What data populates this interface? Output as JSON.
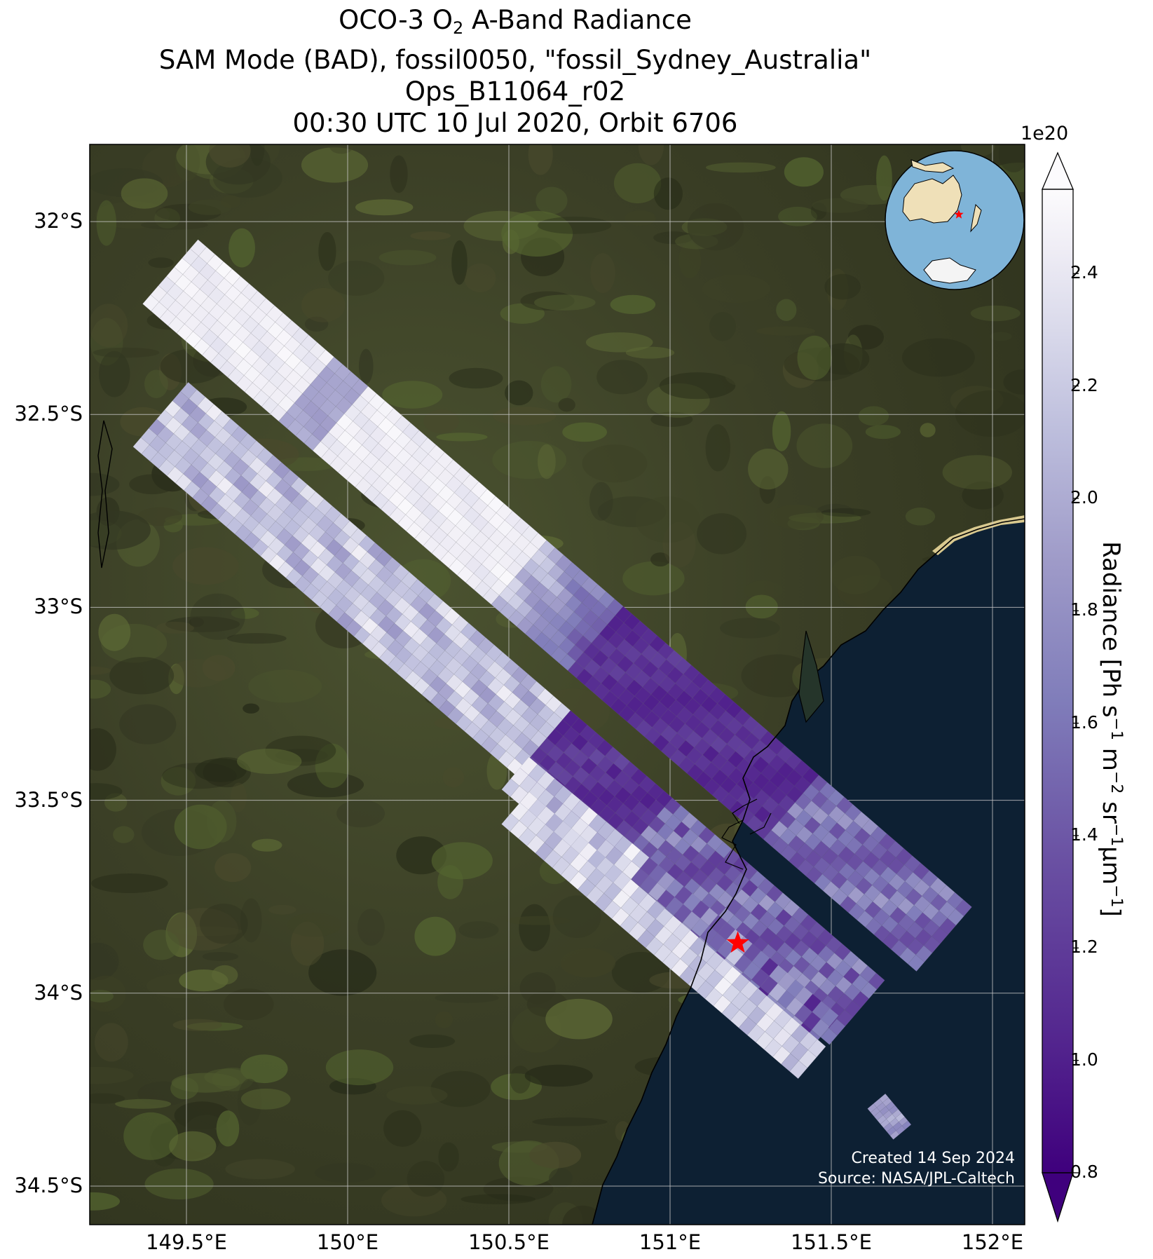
{
  "title": {
    "line1_pre": "OCO-3 O",
    "line1_sub": "2",
    "line1_post": " A-Band Radiance",
    "line2": "SAM Mode (BAD), fossil0050, \"fossil_Sydney_Australia\"",
    "line3": "Ops_B11064_r02",
    "line4": "00:30 UTC 10 Jul 2020, Orbit 6706"
  },
  "map": {
    "extent": {
      "lon_min": 149.2,
      "lon_max": 152.1,
      "lat_min": -34.6,
      "lat_max": -31.8
    },
    "lat_ticks": [
      {
        "value": -32.0,
        "label": "32°S"
      },
      {
        "value": -32.5,
        "label": "32.5°S"
      },
      {
        "value": -33.0,
        "label": "33°S"
      },
      {
        "value": -33.5,
        "label": "33.5°S"
      },
      {
        "value": -34.0,
        "label": "34°S"
      },
      {
        "value": -34.5,
        "label": "34.5°S"
      }
    ],
    "lon_ticks": [
      {
        "value": 149.5,
        "label": "149.5°E"
      },
      {
        "value": 150.0,
        "label": "150°E"
      },
      {
        "value": 150.5,
        "label": "150.5°E"
      },
      {
        "value": 151.0,
        "label": "151°E"
      },
      {
        "value": 151.5,
        "label": "151.5°E"
      },
      {
        "value": 152.0,
        "label": "152°E"
      }
    ],
    "target": {
      "name": "fossil_Sydney_Australia",
      "lon": 151.21,
      "lat": -33.87,
      "color": "#ff0000"
    },
    "colors": {
      "land": "#3a3d24",
      "ocean": "#0c1f31",
      "grid": "#c8c8c8",
      "sand": "#d8c890"
    },
    "swaths": [
      {
        "lon": 149.45,
        "lat": -32.13,
        "lon2": 151.85,
        "lat2": -33.86,
        "width": 0.11,
        "profile": "upper"
      },
      {
        "lon": 149.42,
        "lat": -32.5,
        "lon2": 151.58,
        "lat2": -34.05,
        "width": 0.11,
        "profile": "lower"
      },
      {
        "lon": 150.52,
        "lat": -33.43,
        "lon2": 151.48,
        "lat2": -34.1,
        "width": 0.055,
        "profile": "south_a"
      },
      {
        "lon": 150.52,
        "lat": -33.52,
        "lon2": 151.44,
        "lat2": -34.18,
        "width": 0.055,
        "profile": "south_b"
      },
      {
        "lon": 151.64,
        "lat": -34.28,
        "lon2": 151.72,
        "lat2": -34.36,
        "width": 0.03,
        "profile": "fragment"
      }
    ]
  },
  "inset": {
    "name": "orthographic-globe",
    "colors": {
      "ocean": "#7fb4d8",
      "land": "#efe0b8",
      "ice": "#f4f4f4"
    }
  },
  "colorbar": {
    "label_pre": "Radiance [Ph s",
    "label_exp1": "−1",
    "label_mid1": " m",
    "label_exp2": "−2",
    "label_mid2": " sr",
    "label_exp3": "−1",
    "label_mid3": "μm",
    "label_exp4": "−1",
    "label_post": "]",
    "exponent": "1e20",
    "vmin": 0.8,
    "vmax": 2.55,
    "extend": "both",
    "colormap": "Purples_r",
    "ticks": [
      {
        "value": 0.8,
        "label": "0.8"
      },
      {
        "value": 1.0,
        "label": "1.0"
      },
      {
        "value": 1.2,
        "label": "1.2"
      },
      {
        "value": 1.4,
        "label": "1.4"
      },
      {
        "value": 1.6,
        "label": "1.6"
      },
      {
        "value": 1.8,
        "label": "1.8"
      },
      {
        "value": 2.0,
        "label": "2.0"
      },
      {
        "value": 2.2,
        "label": "2.2"
      },
      {
        "value": 2.4,
        "label": "2.4"
      }
    ]
  },
  "credits": {
    "created": "Created 14 Sep 2024",
    "source": "Source: NASA/JPL-Caltech"
  }
}
